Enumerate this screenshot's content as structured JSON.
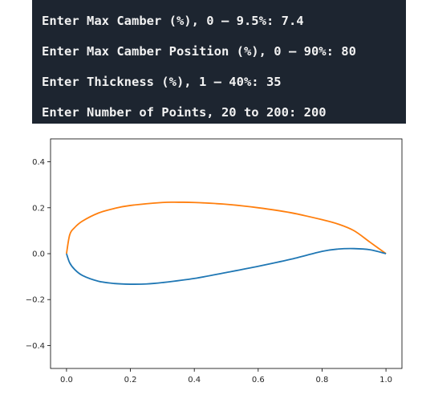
{
  "terminal": {
    "lines": [
      "Enter Max Camber (%), 0 – 9.5%: 7.4",
      "Enter Max Camber Position (%), 0 – 90%: 80",
      "Enter Thickness (%), 1 – 40%: 35",
      "Enter Number of Points, 20 to 200: 200"
    ]
  },
  "chart_data": {
    "type": "line",
    "title": "",
    "xlabel": "",
    "ylabel": "",
    "xlim": [
      -0.05,
      1.05
    ],
    "ylim": [
      -0.5,
      0.5
    ],
    "xticks": [
      "0.0",
      "0.2",
      "0.4",
      "0.6",
      "0.8",
      "1.0"
    ],
    "yticks": [
      "0.4",
      "0.2",
      "0.0",
      "−0.2",
      "−0.4"
    ],
    "grid": false,
    "series": [
      {
        "color": "#ff7f0e",
        "x": [
          1.0,
          0.95,
          0.9,
          0.85,
          0.8,
          0.7,
          0.6,
          0.5,
          0.4,
          0.35,
          0.3,
          0.2,
          0.15,
          0.1,
          0.05,
          0.025,
          0.01,
          0.0
        ],
        "y": [
          0.0,
          0.05,
          0.1,
          0.129,
          0.148,
          0.179,
          0.2,
          0.215,
          0.223,
          0.224,
          0.223,
          0.21,
          0.197,
          0.177,
          0.142,
          0.113,
          0.082,
          0.0
        ]
      },
      {
        "color": "#1f77b4",
        "x": [
          0.0,
          0.01,
          0.025,
          0.05,
          0.1,
          0.15,
          0.2,
          0.25,
          0.3,
          0.4,
          0.5,
          0.6,
          0.7,
          0.8,
          0.85,
          0.9,
          0.95,
          1.0
        ],
        "y": [
          0.0,
          -0.04,
          -0.068,
          -0.095,
          -0.12,
          -0.13,
          -0.133,
          -0.132,
          -0.126,
          -0.108,
          -0.082,
          -0.055,
          -0.025,
          0.01,
          0.02,
          0.022,
          0.017,
          0.0
        ]
      }
    ]
  }
}
